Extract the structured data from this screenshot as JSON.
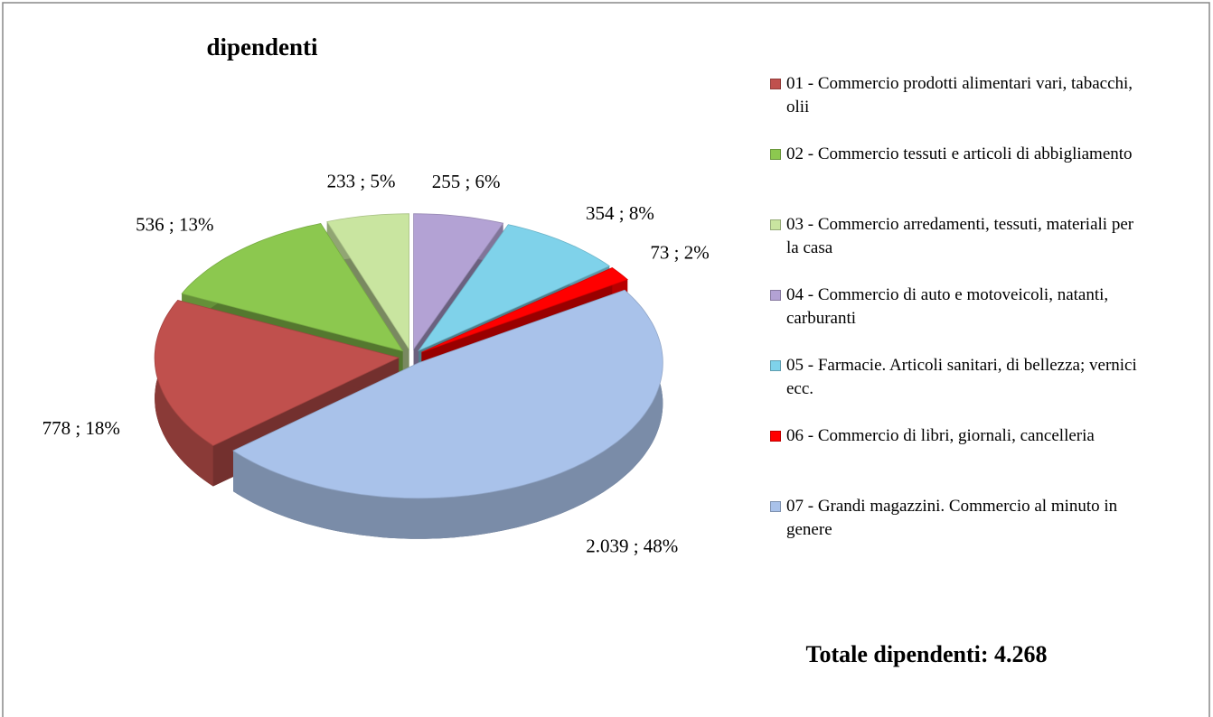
{
  "chart_data": {
    "type": "pie",
    "title": "dipendenti",
    "categories": [
      "01 - Commercio prodotti alimentari vari, tabacchi, olii",
      "02 - Commercio tessuti e articoli di abbigliamento",
      "03 - Commercio arredamenti, tessuti, materiali per la casa",
      "04 - Commercio di auto e motoveicoli, natanti, carburanti",
      "05 - Farmacie. Articoli sanitari, di bellezza; vernici ecc.",
      "06 - Commercio di libri, giornali, cancelleria",
      "07 - Grandi magazzini. Commercio al minuto in genere"
    ],
    "values": [
      778,
      536,
      233,
      255,
      354,
      73,
      2039
    ],
    "value_labels": [
      "778 ; 18%",
      "536 ; 13%",
      "233 ; 5%",
      "255 ; 6%",
      "354 ; 8%",
      "73 ; 2%",
      "2.039 ; 48%"
    ],
    "colors": [
      "#c0504d",
      "#8cc84f",
      "#c9e5a0",
      "#b3a2d4",
      "#7fd2ea",
      "#ff0000",
      "#a9c2ea"
    ],
    "legend": "right",
    "annotation": "Totale dipendenti: 4.268"
  }
}
